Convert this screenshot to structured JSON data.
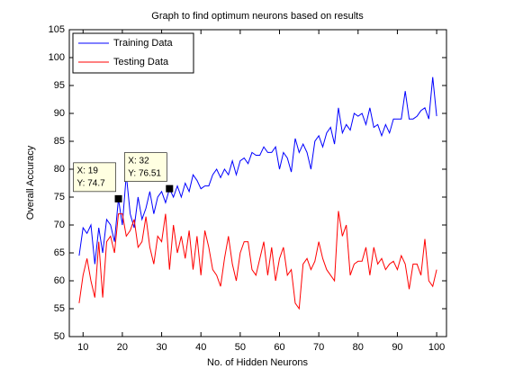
{
  "chart_data": {
    "type": "line",
    "title": "Graph to find optimum neurons based on results",
    "x_label": "No. of Hidden Neurons",
    "y_label": "Overall Accuracy",
    "x": [
      9,
      10,
      11,
      12,
      13,
      14,
      15,
      16,
      17,
      18,
      19,
      20,
      21,
      22,
      23,
      24,
      25,
      26,
      27,
      28,
      29,
      30,
      31,
      32,
      33,
      34,
      35,
      36,
      37,
      38,
      39,
      40,
      41,
      42,
      43,
      44,
      45,
      46,
      47,
      48,
      49,
      50,
      51,
      52,
      53,
      54,
      55,
      56,
      57,
      58,
      59,
      60,
      61,
      62,
      63,
      64,
      65,
      66,
      67,
      68,
      69,
      70,
      71,
      72,
      73,
      74,
      75,
      76,
      77,
      78,
      79,
      80,
      81,
      82,
      83,
      84,
      85,
      86,
      87,
      88,
      89,
      90,
      91,
      92,
      93,
      94,
      95,
      96,
      97,
      98,
      99,
      100
    ],
    "series": [
      {
        "name": "Training Data",
        "color": "#0000ff",
        "values": [
          64.5,
          69.5,
          68.5,
          70,
          63,
          69.5,
          65,
          71,
          70,
          67,
          74.7,
          70,
          79,
          72,
          69.5,
          75,
          71,
          73,
          76,
          72,
          75,
          76,
          74,
          76.51,
          75,
          77,
          75,
          77.5,
          76,
          79,
          78,
          76.5,
          77,
          77,
          79,
          80,
          78.5,
          80,
          79,
          81.5,
          79,
          81.5,
          82,
          81,
          83,
          82.5,
          82.5,
          84,
          83,
          83,
          84,
          80,
          83,
          82,
          79.5,
          85.5,
          83,
          84.5,
          83,
          80,
          85,
          86,
          84,
          86.5,
          87.5,
          84.5,
          91,
          86.5,
          88,
          87,
          90,
          89.5,
          90,
          88,
          91,
          87.5,
          88,
          86,
          88,
          86.5,
          89,
          89,
          89,
          94,
          89,
          89,
          89.5,
          90.5,
          91,
          89,
          96.5,
          89.5
        ]
      },
      {
        "name": "Testing Data",
        "color": "#ff0000",
        "values": [
          56,
          61,
          64,
          60,
          57,
          67,
          57,
          67,
          68,
          65,
          72,
          72,
          68,
          69,
          71,
          66,
          67,
          71.5,
          66,
          63,
          68,
          67,
          72,
          62,
          70,
          65,
          68,
          64,
          69,
          62,
          68,
          61,
          69,
          66,
          62,
          61,
          59,
          64,
          68,
          63,
          60,
          65,
          67,
          67,
          62,
          61,
          64,
          67,
          61,
          66,
          60,
          64,
          66,
          61,
          62,
          56,
          55,
          63,
          64,
          62,
          63.5,
          67,
          64,
          62,
          61,
          60,
          72.5,
          68,
          70,
          61,
          63,
          63.5,
          63.5,
          66,
          61,
          66,
          63,
          64,
          62,
          63,
          63.5,
          62,
          64.5,
          63,
          58.5,
          63,
          63,
          61,
          67.5,
          60,
          59,
          62
        ]
      }
    ],
    "xlim": [
      6.5,
      102.5
    ],
    "ylim": [
      50,
      105
    ],
    "xticks": [
      10,
      20,
      30,
      40,
      50,
      60,
      70,
      80,
      90,
      100
    ],
    "yticks": [
      50,
      55,
      60,
      65,
      70,
      75,
      80,
      85,
      90,
      95,
      100,
      105
    ],
    "legend": "upper left",
    "grid": false,
    "datatips": [
      {
        "x": 19,
        "y": 74.7,
        "x_label": "X: 19",
        "y_label": "Y: 74.7"
      },
      {
        "x": 32,
        "y": 76.51,
        "x_label": "X: 32",
        "y_label": "Y: 76.51"
      }
    ]
  }
}
